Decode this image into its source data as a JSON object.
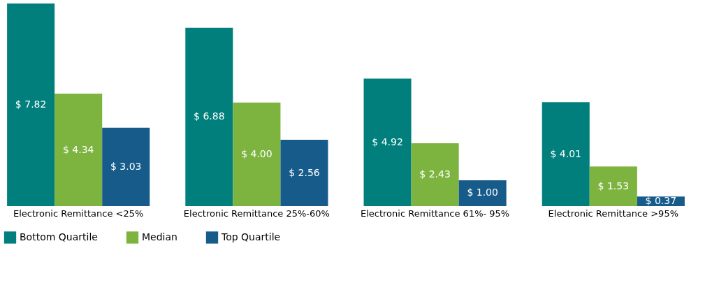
{
  "chart_data": {
    "type": "bar",
    "categories": [
      "Electronic Remittance <25%",
      "Electronic Remittance 25%-60%",
      "Electronic Remittance 61%- 95%",
      "Electronic Remittance >95%"
    ],
    "series": [
      {
        "name": "Bottom Quartile",
        "color": "#007f7c",
        "values": [
          7.82,
          6.88,
          4.92,
          4.01
        ],
        "value_labels": [
          "$ 7.82",
          "$ 6.88",
          "$ 4.92",
          "$ 4.01"
        ]
      },
      {
        "name": "Median",
        "color": "#7db440",
        "values": [
          4.34,
          4.0,
          2.43,
          1.53
        ],
        "value_labels": [
          "$ 4.34",
          "$ 4.00",
          "$ 2.43",
          "$ 1.53"
        ]
      },
      {
        "name": "Top Quartile",
        "color": "#165b8a",
        "values": [
          3.03,
          2.56,
          1.0,
          0.37
        ],
        "value_labels": [
          "$ 3.03",
          "$ 2.56",
          "$ 1.00",
          "$ 0.37"
        ]
      }
    ],
    "legend": "bottom",
    "grid": false
  }
}
